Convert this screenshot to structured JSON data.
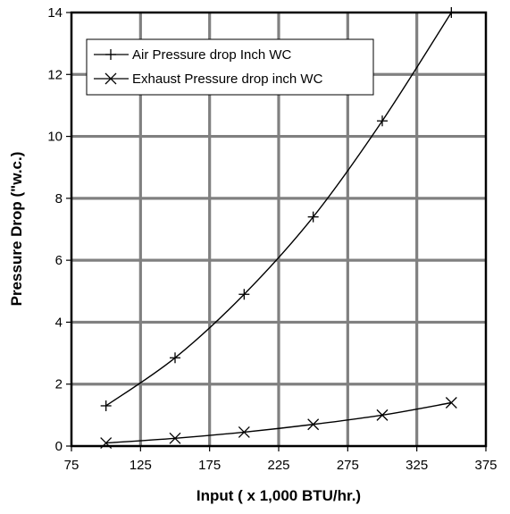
{
  "chart_data": {
    "type": "line",
    "title": "",
    "xlabel": "Input ( x 1,000 BTU/hr.)",
    "ylabel": "Pressure Drop (\"w.c.)",
    "xlim": [
      75,
      375
    ],
    "ylim": [
      0,
      14
    ],
    "x_ticks": [
      "75",
      "125",
      "175",
      "225",
      "275",
      "325",
      "375"
    ],
    "y_ticks": [
      "0",
      "2",
      "4",
      "6",
      "8",
      "10",
      "12",
      "14"
    ],
    "grid": true,
    "legend_position": "top-left",
    "series": [
      {
        "name": "Air Pressure drop Inch WC",
        "marker": "plus",
        "color": "#000000",
        "points": [
          {
            "x": 100,
            "y": 1.3
          },
          {
            "x": 150,
            "y": 2.85
          },
          {
            "x": 200,
            "y": 4.9
          },
          {
            "x": 250,
            "y": 7.4
          },
          {
            "x": 300,
            "y": 10.5
          },
          {
            "x": 350,
            "y": 14.0
          }
        ]
      },
      {
        "name": "Exhaust Pressure drop inch WC",
        "marker": "x",
        "color": "#000000",
        "points": [
          {
            "x": 100,
            "y": 0.1
          },
          {
            "x": 150,
            "y": 0.25
          },
          {
            "x": 200,
            "y": 0.45
          },
          {
            "x": 250,
            "y": 0.7
          },
          {
            "x": 300,
            "y": 1.0
          },
          {
            "x": 350,
            "y": 1.4
          }
        ]
      }
    ]
  }
}
